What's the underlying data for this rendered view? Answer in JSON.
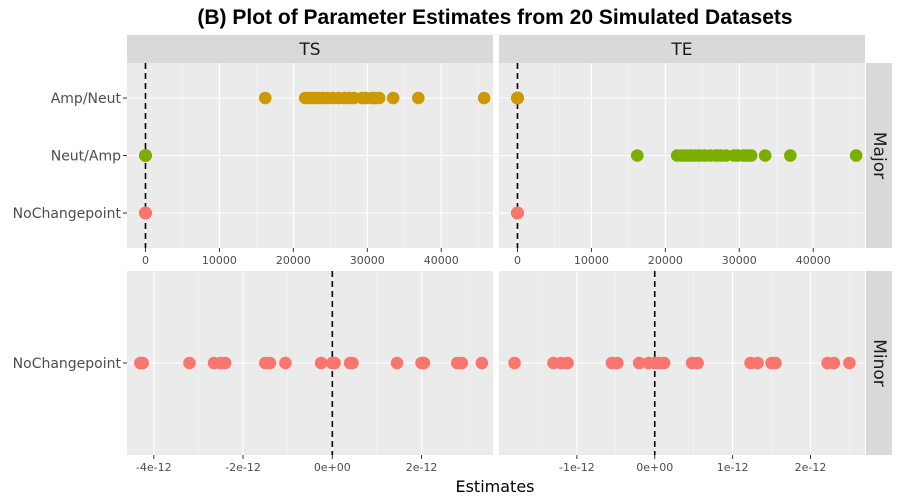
{
  "chart_data": {
    "type": "scatter",
    "title": "(B) Plot of Parameter Estimates from 20 Simulated Datasets",
    "xlabel": "Estimates",
    "ylabel": "",
    "reference_line": {
      "x": 0,
      "style": "dashed"
    },
    "columns": [
      "TS",
      "TE"
    ],
    "rows": [
      "Major",
      "Minor"
    ],
    "colors": {
      "Amp/Neut": "#cc9a00",
      "Neut/Amp": "#7cae00",
      "NoChangepoint": "#f8766d"
    },
    "panels": [
      {
        "column": "TS",
        "row": "Major",
        "categories": [
          "NoChangepoint",
          "Neut/Amp",
          "Amp/Neut"
        ],
        "xlim": [
          -2500,
          47000
        ],
        "x_ticks": [
          0,
          10000,
          20000,
          30000,
          40000
        ],
        "x_tick_labels": [
          "0",
          "10000",
          "20000",
          "30000",
          "40000"
        ],
        "series": [
          {
            "category": "Amp/Neut",
            "values": [
              16200,
              21600,
              22200,
              22800,
              23400,
              24000,
              24600,
              25300,
              26100,
              26900,
              27500,
              28200,
              29300,
              29800,
              30600,
              31000,
              31600,
              33500,
              36900,
              45800
            ]
          },
          {
            "category": "Neut/Amp",
            "values": [
              0,
              0,
              0,
              0,
              0,
              0,
              0,
              0,
              0,
              0,
              0,
              0,
              0,
              0,
              0,
              0,
              0,
              0,
              0,
              0
            ]
          },
          {
            "category": "NoChangepoint",
            "values": [
              0,
              0,
              0,
              0,
              0,
              0,
              0,
              0,
              0,
              0,
              0,
              0,
              0,
              0,
              0,
              0,
              0,
              0,
              0,
              0
            ]
          }
        ]
      },
      {
        "column": "TE",
        "row": "Major",
        "categories": [
          "NoChangepoint",
          "Neut/Amp",
          "Amp/Neut"
        ],
        "xlim": [
          -2500,
          47000
        ],
        "x_ticks": [
          0,
          10000,
          20000,
          30000,
          40000
        ],
        "x_tick_labels": [
          "0",
          "10000",
          "20000",
          "30000",
          "40000"
        ],
        "series": [
          {
            "category": "Amp/Neut",
            "values": [
              0,
              0,
              0,
              0,
              0,
              0,
              0,
              0,
              0,
              0,
              0,
              0,
              0,
              0,
              0,
              0,
              0,
              0,
              0,
              0
            ]
          },
          {
            "category": "Neut/Amp",
            "values": [
              16200,
              21600,
              22200,
              22800,
              23400,
              24000,
              24600,
              25300,
              26100,
              26900,
              27500,
              28200,
              29300,
              29800,
              30600,
              31000,
              31600,
              33500,
              36900,
              45800
            ]
          },
          {
            "category": "NoChangepoint",
            "values": [
              0,
              0,
              0,
              0,
              0,
              0,
              0,
              0,
              0,
              0,
              0,
              0,
              0,
              0,
              0,
              0,
              0,
              0,
              0,
              0
            ]
          }
        ]
      },
      {
        "column": "TS",
        "row": "Minor",
        "categories": [
          "NoChangepoint"
        ],
        "xlim": [
          -4.6e-12,
          3.6e-12
        ],
        "x_ticks": [
          -4e-12,
          -2e-12,
          0,
          2e-12
        ],
        "x_tick_labels": [
          "-4e-12",
          "-2e-12",
          "0e+00",
          "2e-12"
        ],
        "series": [
          {
            "category": "NoChangepoint",
            "values": [
              -4.3e-12,
              -4.25e-12,
              -3.2e-12,
              -2.65e-12,
              -2.5e-12,
              -2.4e-12,
              -1.5e-12,
              -1.4e-12,
              -1.05e-12,
              -2.5e-13,
              0,
              5e-14,
              4e-13,
              4.5e-13,
              1.45e-12,
              2e-12,
              2.05e-12,
              2.8e-12,
              2.9e-12,
              3.35e-12
            ]
          }
        ]
      },
      {
        "column": "TE",
        "row": "Minor",
        "categories": [
          "NoChangepoint"
        ],
        "xlim": [
          -2e-12,
          2.7e-12
        ],
        "x_ticks": [
          -1e-12,
          0,
          1e-12,
          2e-12
        ],
        "x_tick_labels": [
          "-1e-12",
          "0e+00",
          "1e-12",
          "2e-12"
        ],
        "series": [
          {
            "category": "NoChangepoint",
            "values": [
              -1.8e-12,
              -1.3e-12,
              -1.2e-12,
              -1.12e-12,
              -5.5e-13,
              -4.8e-13,
              -2e-13,
              -8e-14,
              0,
              5e-14,
              1.2e-13,
              4.8e-13,
              5.5e-13,
              1.23e-12,
              1.32e-12,
              1.5e-12,
              1.55e-12,
              2.22e-12,
              2.3e-12,
              2.5e-12
            ]
          }
        ]
      }
    ]
  }
}
